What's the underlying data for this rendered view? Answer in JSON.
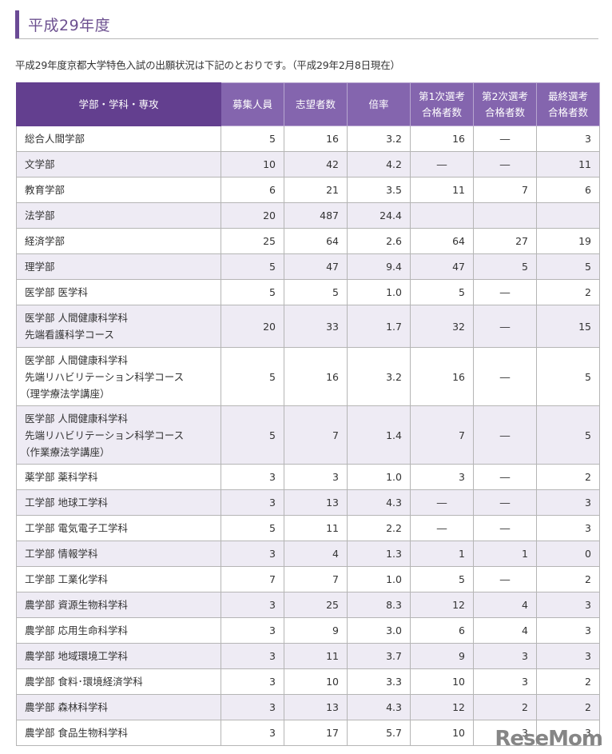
{
  "heading": {
    "title": "平成29年度"
  },
  "intro": "平成29年度京都大学特色入試の出願状況は下記のとおりです。（平成29年2月8日現在）",
  "table": {
    "headers": [
      "学部・学科・専攻",
      "募集人員",
      "志望者数",
      "倍率",
      "第1次選考\n合格者数",
      "第2次選考\n合格者数",
      "最終選考\n合格者数"
    ],
    "rows": [
      {
        "name": [
          "総合人間学部"
        ],
        "cells": [
          "5",
          "16",
          "3.2",
          "16",
          "―",
          "3"
        ]
      },
      {
        "name": [
          "文学部"
        ],
        "cells": [
          "10",
          "42",
          "4.2",
          "―",
          "―",
          "11"
        ]
      },
      {
        "name": [
          "教育学部"
        ],
        "cells": [
          "6",
          "21",
          "3.5",
          "11",
          "7",
          "6"
        ]
      },
      {
        "name": [
          "法学部"
        ],
        "cells": [
          "20",
          "487",
          "24.4",
          "",
          "",
          ""
        ]
      },
      {
        "name": [
          "経済学部"
        ],
        "cells": [
          "25",
          "64",
          "2.6",
          "64",
          "27",
          "19"
        ]
      },
      {
        "name": [
          "理学部"
        ],
        "cells": [
          "5",
          "47",
          "9.4",
          "47",
          "5",
          "5"
        ]
      },
      {
        "name": [
          "医学部 医学科"
        ],
        "cells": [
          "5",
          "5",
          "1.0",
          "5",
          "―",
          "2"
        ]
      },
      {
        "name": [
          "医学部 人間健康科学科",
          "先端看護科学コース"
        ],
        "cells": [
          "20",
          "33",
          "1.7",
          "32",
          "―",
          "15"
        ]
      },
      {
        "name": [
          "医学部 人間健康科学科",
          "先端リハビリテーション科学コース",
          "（理学療法学講座）"
        ],
        "cells": [
          "5",
          "16",
          "3.2",
          "16",
          "―",
          "5"
        ]
      },
      {
        "name": [
          "医学部 人間健康科学科",
          "先端リハビリテーション科学コース",
          "（作業療法学講座）"
        ],
        "cells": [
          "5",
          "7",
          "1.4",
          "7",
          "―",
          "5"
        ]
      },
      {
        "name": [
          "薬学部 薬科学科"
        ],
        "cells": [
          "3",
          "3",
          "1.0",
          "3",
          "―",
          "2"
        ]
      },
      {
        "name": [
          "工学部 地球工学科"
        ],
        "cells": [
          "3",
          "13",
          "4.3",
          "―",
          "―",
          "3"
        ]
      },
      {
        "name": [
          "工学部 電気電子工学科"
        ],
        "cells": [
          "5",
          "11",
          "2.2",
          "―",
          "―",
          "3"
        ]
      },
      {
        "name": [
          "工学部 情報学科"
        ],
        "cells": [
          "3",
          "4",
          "1.3",
          "1",
          "1",
          "0"
        ]
      },
      {
        "name": [
          "工学部 工業化学科"
        ],
        "cells": [
          "7",
          "7",
          "1.0",
          "5",
          "―",
          "2"
        ]
      },
      {
        "name": [
          "農学部 資源生物科学科"
        ],
        "cells": [
          "3",
          "25",
          "8.3",
          "12",
          "4",
          "3"
        ]
      },
      {
        "name": [
          "農学部 応用生命科学科"
        ],
        "cells": [
          "3",
          "9",
          "3.0",
          "6",
          "4",
          "3"
        ]
      },
      {
        "name": [
          "農学部 地域環境工学科"
        ],
        "cells": [
          "3",
          "11",
          "3.7",
          "9",
          "3",
          "3"
        ]
      },
      {
        "name": [
          "農学部 食料･環境経済学科"
        ],
        "cells": [
          "3",
          "10",
          "3.3",
          "10",
          "3",
          "2"
        ]
      },
      {
        "name": [
          "農学部 森林科学科"
        ],
        "cells": [
          "3",
          "13",
          "4.3",
          "12",
          "2",
          "2"
        ]
      },
      {
        "name": [
          "農学部 食品生物科学科"
        ],
        "cells": [
          "3",
          "17",
          "5.7",
          "10",
          "3",
          "3"
        ]
      }
    ]
  },
  "watermark": "ReseMom",
  "colors": {
    "accent": "#6a4a95",
    "header_first": "#633f8f",
    "header_other": "#8465ae",
    "row_alt": "#eeebf4",
    "border": "#b5b5b5"
  }
}
